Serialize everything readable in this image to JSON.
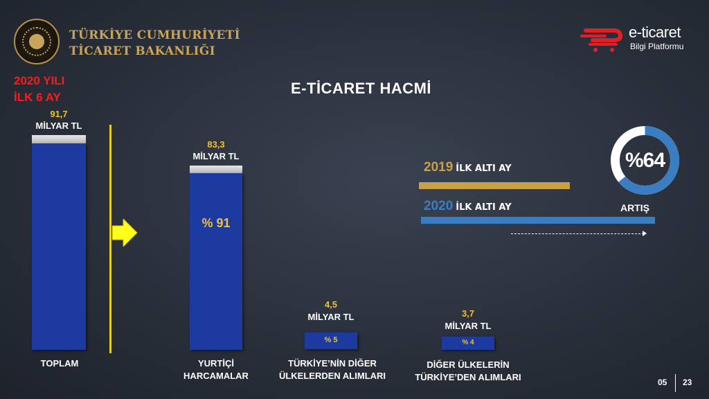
{
  "header": {
    "ministry_line1": "TÜRKİYE CUMHURİYETİ",
    "ministry_line2": "TİCARET BAKANLIĞI",
    "logo_line1": "e-ticaret",
    "logo_line2": "Bilgi Platformu",
    "seal_icon": "ministry-seal-icon",
    "logo_icon": "eticaret-cart-icon"
  },
  "period": {
    "line1": "2020 YILI",
    "line2": "İLK 6 AY"
  },
  "title": "E-TİCARET HACMİ",
  "unit_label": "MİLYAR TL",
  "bars": [
    {
      "key": "toplam",
      "value": "91,7",
      "share": 100,
      "pct": "",
      "cat1": "TOPLAM",
      "cat2": ""
    },
    {
      "key": "yurtici",
      "value": "83,3",
      "share": 91,
      "pct": "% 91",
      "cat1": "YURTİÇİ",
      "cat2": "HARCAMALAR"
    },
    {
      "key": "yurtdisi",
      "value": "4,5",
      "share": 5,
      "pct": "% 5",
      "cat1": "TÜRKİYE’NİN DİĞER",
      "cat2": "ÜLKELERDEN ALIMLARI"
    },
    {
      "key": "ihracat",
      "value": "3,7",
      "share": 4,
      "pct": "% 4",
      "cat1": "DİĞER ÜLKELERİN",
      "cat2": "TÜRKİYE’DEN ALIMLARI"
    }
  ],
  "comparison": {
    "y2019_year": "2019",
    "y2019_label": "İLK ALTI AY",
    "y2020_year": "2020",
    "y2020_label": "İLK ALTI AY",
    "growth": "%64",
    "growth_fraction": 0.64,
    "growth_label": "ARTIŞ"
  },
  "colors": {
    "accent_yellow": "#f2c230",
    "bar_blue": "#1c3aa0",
    "gold": "#c9a045",
    "blue_line": "#3a7dc2",
    "title_red": "#ff1a1a"
  },
  "pagination": {
    "current": "05",
    "total": "23"
  }
}
